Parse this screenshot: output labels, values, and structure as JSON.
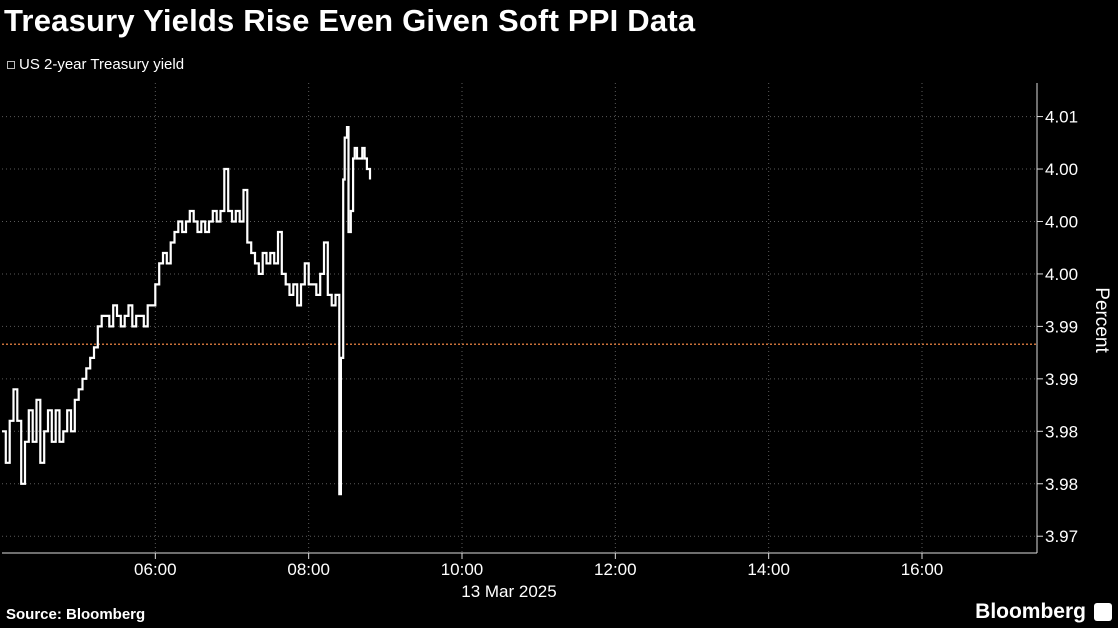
{
  "header": {
    "title": "Treasury Yields Rise Even Given Soft PPI Data"
  },
  "legend": {
    "series_name": "US 2-year Treasury yield"
  },
  "footer": {
    "source": "Source: Bloomberg",
    "brand": "Bloomberg",
    "brand_icon": "bloomberg-terminal-icon"
  },
  "chart_data": {
    "type": "line",
    "title": "Treasury Yields Rise Even Given Soft PPI Data",
    "xlabel": "13 Mar 2025",
    "ylabel": "Percent",
    "x_ticks": [
      "06:00",
      "08:00",
      "10:00",
      "12:00",
      "14:00",
      "16:00"
    ],
    "x_tick_hours": [
      6,
      8,
      10,
      12,
      14,
      16
    ],
    "x_range_hours": [
      4.0,
      17.5
    ],
    "y_tick_labels": [
      "3.97",
      "3.98",
      "3.98",
      "3.99",
      "3.99",
      "4.00",
      "4.00",
      "4.00",
      "4.01"
    ],
    "y_tick_values": [
      3.97,
      3.975,
      3.98,
      3.985,
      3.99,
      3.995,
      4.0,
      4.005,
      4.01
    ],
    "ylim": [
      3.9684,
      4.0132
    ],
    "grid": true,
    "reference_line": {
      "value": 3.9883,
      "color": "#c9713a",
      "style": "dotted"
    },
    "series": [
      {
        "name": "US 2-year Treasury yield",
        "color": "#ffffff",
        "x_hours": [
          4.0,
          4.05,
          4.1,
          4.15,
          4.2,
          4.25,
          4.3,
          4.35,
          4.4,
          4.45,
          4.5,
          4.55,
          4.6,
          4.65,
          4.7,
          4.75,
          4.8,
          4.85,
          4.9,
          4.95,
          5.0,
          5.05,
          5.1,
          5.15,
          5.2,
          5.25,
          5.3,
          5.35,
          5.4,
          5.45,
          5.5,
          5.55,
          5.6,
          5.65,
          5.7,
          5.75,
          5.8,
          5.85,
          5.9,
          5.95,
          6.0,
          6.05,
          6.1,
          6.15,
          6.2,
          6.25,
          6.3,
          6.35,
          6.4,
          6.45,
          6.5,
          6.55,
          6.6,
          6.65,
          6.7,
          6.75,
          6.8,
          6.85,
          6.9,
          6.95,
          7.0,
          7.05,
          7.1,
          7.15,
          7.2,
          7.25,
          7.3,
          7.35,
          7.4,
          7.45,
          7.5,
          7.55,
          7.6,
          7.65,
          7.7,
          7.75,
          7.8,
          7.85,
          7.9,
          7.95,
          8.0,
          8.05,
          8.1,
          8.15,
          8.2,
          8.25,
          8.3,
          8.35,
          8.4,
          8.42,
          8.45,
          8.47,
          8.5,
          8.52,
          8.55,
          8.58,
          8.6,
          8.63,
          8.66,
          8.7,
          8.73,
          8.76,
          8.8
        ],
        "values": [
          3.98,
          3.977,
          3.981,
          3.984,
          3.981,
          3.975,
          3.979,
          3.982,
          3.979,
          3.983,
          3.977,
          3.98,
          3.982,
          3.979,
          3.982,
          3.979,
          3.98,
          3.982,
          3.98,
          3.983,
          3.984,
          3.985,
          3.986,
          3.987,
          3.988,
          3.99,
          3.991,
          3.991,
          3.99,
          3.992,
          3.991,
          3.99,
          3.991,
          3.992,
          3.99,
          3.991,
          3.991,
          3.99,
          3.992,
          3.992,
          3.994,
          3.996,
          3.997,
          3.996,
          3.998,
          3.999,
          4.0,
          3.999,
          4.0,
          4.001,
          4.0,
          3.999,
          4.0,
          3.999,
          4.0,
          4.001,
          4.0,
          4.001,
          4.005,
          4.001,
          4.0,
          4.001,
          4.0,
          4.003,
          3.998,
          3.997,
          3.996,
          3.995,
          3.997,
          3.996,
          3.997,
          3.996,
          3.999,
          3.995,
          3.994,
          3.993,
          3.994,
          3.992,
          3.994,
          3.996,
          3.994,
          3.994,
          3.993,
          3.995,
          3.998,
          3.993,
          3.992,
          3.993,
          3.974,
          3.987,
          4.004,
          4.008,
          4.009,
          3.999,
          4.001,
          4.006,
          4.007,
          4.006,
          4.006,
          4.007,
          4.006,
          4.005,
          4.004
        ]
      }
    ]
  }
}
